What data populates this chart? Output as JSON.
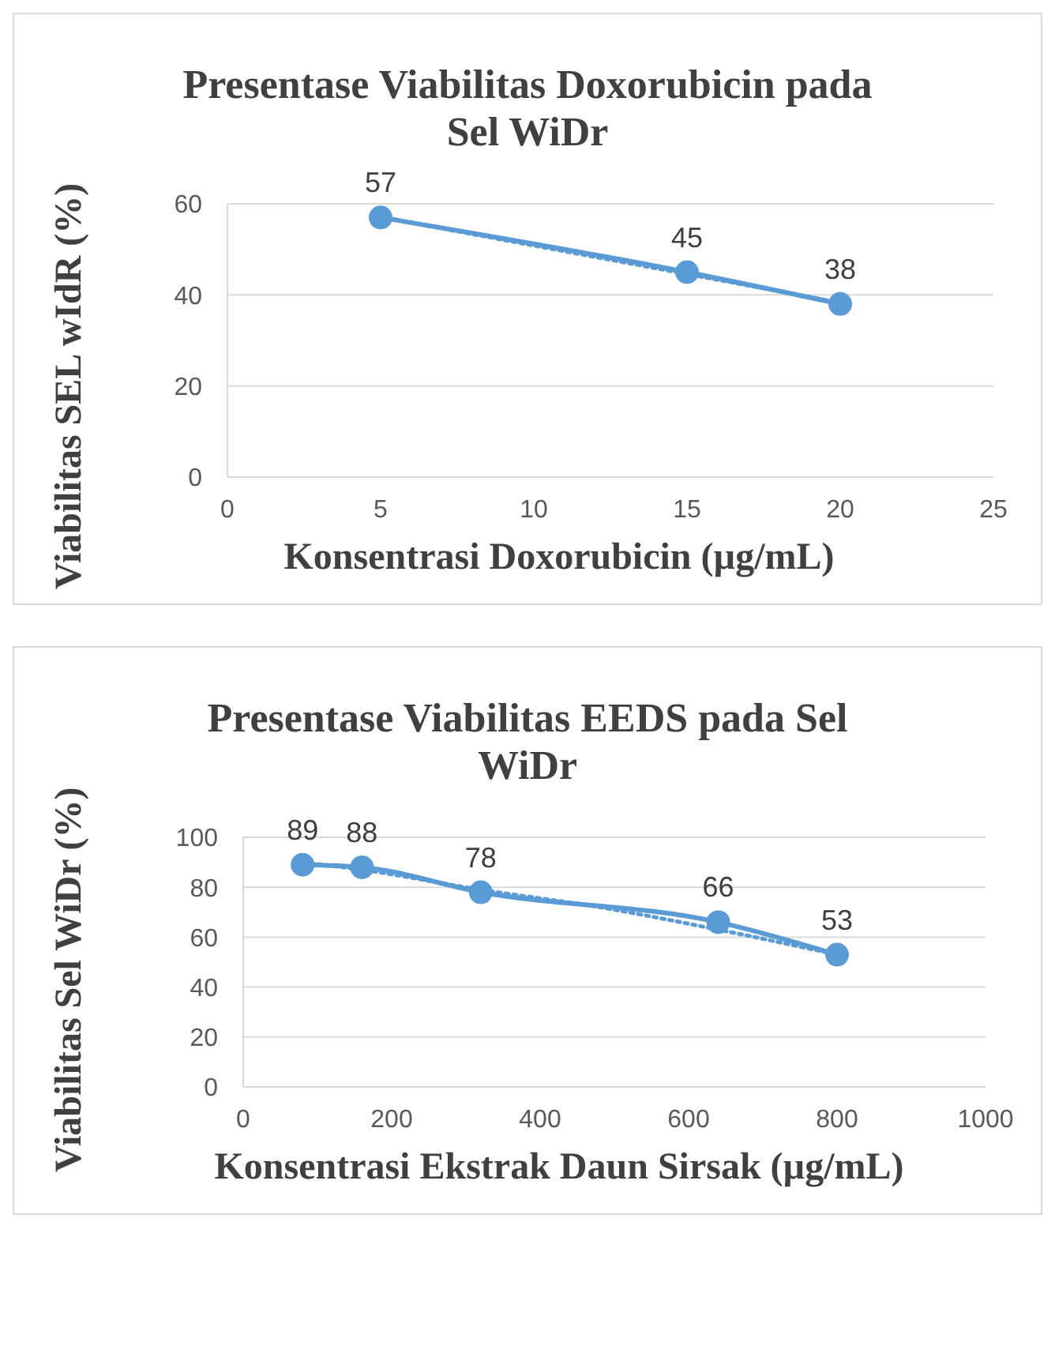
{
  "chart_data": [
    {
      "type": "line",
      "title": "Presentase Viabilitas Doxorubicin pada Sel WiDr",
      "xlabel": "Konsentrasi Doxorubicin (µg/mL)",
      "ylabel": "Viabilitas SEL wIdR (%)",
      "xlim": [
        0,
        25
      ],
      "xticks": [
        0,
        5,
        10,
        15,
        20,
        25
      ],
      "ylim": [
        0,
        60
      ],
      "yticks": [
        0,
        20,
        40,
        60
      ],
      "grid": "y",
      "marker": "circle",
      "series": [
        {
          "x": [
            5,
            15,
            20
          ],
          "values": [
            57,
            45,
            38
          ],
          "value_labels": [
            "57",
            "45",
            "38"
          ],
          "color": "#5b9bd5"
        },
        {
          "type": "line",
          "x": [
            5,
            20
          ],
          "values": [
            57.1,
            38.3
          ],
          "color": "#5b9bd5",
          "line_style": "dotted",
          "marker": "none"
        }
      ]
    },
    {
      "type": "line",
      "title": "Presentase Viabilitas EEDS pada Sel WiDr",
      "xlabel": "Konsentrasi Ekstrak Daun Sirsak (µg/mL)",
      "ylabel": "Viabilitas Sel WiDr (%)",
      "xlim": [
        0,
        1000
      ],
      "xticks": [
        0,
        200,
        400,
        600,
        800,
        1000
      ],
      "ylim": [
        0,
        100
      ],
      "yticks": [
        0,
        20,
        40,
        60,
        80,
        100
      ],
      "grid": "y",
      "marker": "circle",
      "series": [
        {
          "x": [
            80,
            160,
            320,
            640,
            800
          ],
          "values": [
            89,
            88,
            78,
            66,
            53
          ],
          "value_labels": [
            "89",
            "88",
            "78",
            "66",
            "53"
          ],
          "color": "#5b9bd5"
        },
        {
          "type": "line",
          "x": [
            80,
            160,
            320,
            480,
            640,
            800
          ],
          "values": [
            90,
            87,
            79,
            72,
            63,
            53
          ],
          "color": "#5b9bd5",
          "line_style": "dotted",
          "marker": "none"
        }
      ]
    }
  ]
}
